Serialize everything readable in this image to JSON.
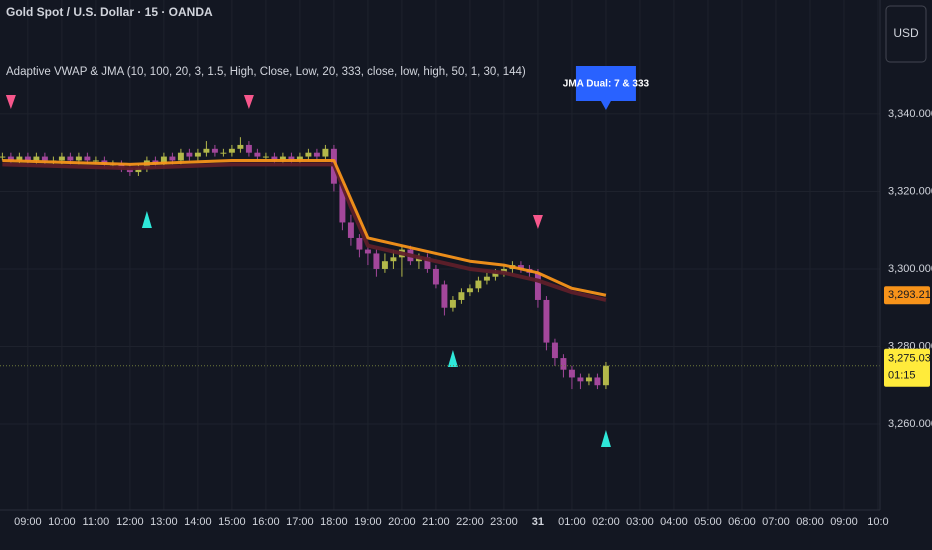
{
  "chart_data": {
    "type": "candlestick",
    "title": "Gold Spot / U.S. Dollar · 15 · OANDA",
    "indicator": "Adaptive VWAP & JMA (10, 100, 20, 3, 1.5, High, Close, Low, 20, 333, close, low, high, 50, 1, 30, 144)",
    "currency": "USD",
    "xlim": [
      -0.82,
      25.06
    ],
    "xticks": [
      {
        "value": 0,
        "label": "09:00"
      },
      {
        "value": 1,
        "label": "10:00"
      },
      {
        "value": 2,
        "label": "11:00"
      },
      {
        "value": 3,
        "label": "12:00"
      },
      {
        "value": 4,
        "label": "13:00"
      },
      {
        "value": 5,
        "label": "14:00"
      },
      {
        "value": 6,
        "label": "15:00"
      },
      {
        "value": 7,
        "label": "16:00"
      },
      {
        "value": 8,
        "label": "17:00"
      },
      {
        "value": 9,
        "label": "18:00"
      },
      {
        "value": 10,
        "label": "19:00"
      },
      {
        "value": 11,
        "label": "20:00"
      },
      {
        "value": 12,
        "label": "21:00"
      },
      {
        "value": 13,
        "label": "22:00"
      },
      {
        "value": 14,
        "label": "23:00"
      },
      {
        "value": 15,
        "label": "31"
      },
      {
        "value": 16,
        "label": "01:00"
      },
      {
        "value": 17,
        "label": "02:00"
      },
      {
        "value": 18,
        "label": "03:00"
      },
      {
        "value": 19,
        "label": "04:00"
      },
      {
        "value": 20,
        "label": "05:00"
      },
      {
        "value": 21,
        "label": "06:00"
      },
      {
        "value": 22,
        "label": "07:00"
      },
      {
        "value": 23,
        "label": "08:00"
      },
      {
        "value": 24,
        "label": "09:00"
      },
      {
        "value": 25,
        "label": "10:0"
      }
    ],
    "ylim": [
      3237.8,
      3369.4
    ],
    "yticks": [
      {
        "value": 3260,
        "label": "3,260.000"
      },
      {
        "value": 3280,
        "label": "3,280.000"
      },
      {
        "value": 3300,
        "label": "3,300.000"
      },
      {
        "value": 3320,
        "label": "3,320.000"
      },
      {
        "value": 3340,
        "label": "3,340.000"
      }
    ],
    "grid": true,
    "up_color": "#b3b84a",
    "down_color": "#a3479b",
    "x": [
      -0.75,
      -0.5,
      -0.25,
      0,
      0.25,
      0.5,
      0.75,
      1,
      1.25,
      1.5,
      1.75,
      2,
      2.25,
      2.5,
      2.75,
      3,
      3.25,
      3.5,
      3.75,
      4,
      4.25,
      4.5,
      4.75,
      5,
      5.25,
      5.5,
      5.75,
      6,
      6.25,
      6.5,
      6.75,
      7,
      7.25,
      7.5,
      7.75,
      8,
      8.25,
      8.5,
      8.75,
      9,
      9.25,
      9.5,
      9.75,
      10,
      10.25,
      10.5,
      10.75,
      11,
      11.25,
      11.5,
      11.75,
      12,
      12.25,
      12.5,
      12.75,
      13,
      13.25,
      13.5,
      13.75,
      14,
      14.25,
      14.5,
      14.75,
      15,
      15.25,
      15.5,
      15.75,
      16,
      16.25,
      16.5,
      16.75,
      17
    ],
    "open": [
      3329,
      3329,
      3328,
      3329,
      3328,
      3329,
      3328,
      3328,
      3329,
      3328,
      3329,
      3328,
      3328,
      3327,
      3327,
      3326,
      3325,
      3326,
      3328,
      3327,
      3329,
      3328,
      3330,
      3329,
      3330,
      3331,
      3330,
      3330,
      3331,
      3332,
      3330,
      3329,
      3329,
      3328,
      3329,
      3328,
      3329,
      3330,
      3329,
      3331,
      3322,
      3312,
      3308,
      3305,
      3304,
      3300,
      3302,
      3303,
      3305,
      3302,
      3303,
      3300,
      3296,
      3290,
      3292,
      3294,
      3295,
      3297,
      3298,
      3299,
      3300,
      3301,
      3300,
      3299,
      3292,
      3281,
      3277,
      3274,
      3272,
      3271,
      3272,
      3270
    ],
    "high": [
      3330,
      3330,
      3330,
      3330,
      3330,
      3330,
      3329,
      3330,
      3330,
      3330,
      3330,
      3329,
      3329,
      3328,
      3328,
      3327,
      3327,
      3329,
      3329,
      3330,
      3330,
      3331,
      3331,
      3331,
      3333,
      3332,
      3331,
      3332,
      3334,
      3333,
      3331,
      3330,
      3330,
      3330,
      3330,
      3330,
      3331,
      3331,
      3332,
      3332,
      3323,
      3314,
      3309,
      3306,
      3305,
      3304,
      3305,
      3306,
      3306,
      3304,
      3304,
      3301,
      3297,
      3293,
      3295,
      3296,
      3298,
      3299,
      3300,
      3301,
      3302,
      3302,
      3301,
      3300,
      3293,
      3282,
      3278,
      3275,
      3273,
      3273,
      3273,
      3276
    ],
    "low": [
      3328,
      3327,
      3327,
      3327,
      3327,
      3327,
      3327,
      3327,
      3327,
      3327,
      3327,
      3327,
      3326,
      3326,
      3325,
      3324,
      3324,
      3325,
      3326,
      3326,
      3327,
      3327,
      3328,
      3328,
      3329,
      3329,
      3329,
      3329,
      3330,
      3329,
      3328,
      3328,
      3327,
      3327,
      3327,
      3327,
      3328,
      3328,
      3328,
      3320,
      3310,
      3306,
      3303,
      3301,
      3298,
      3299,
      3300,
      3298,
      3301,
      3300,
      3299,
      3295,
      3288,
      3289,
      3291,
      3293,
      3294,
      3296,
      3297,
      3298,
      3299,
      3299,
      3298,
      3290,
      3279,
      3275,
      3272,
      3269,
      3269,
      3270,
      3269,
      3269
    ],
    "close": [
      3329,
      3328,
      3329,
      3328,
      3329,
      3328,
      3328,
      3329,
      3328,
      3329,
      3328,
      3328,
      3327,
      3327,
      3326,
      3325,
      3326,
      3328,
      3327,
      3329,
      3328,
      3330,
      3329,
      3330,
      3331,
      3330,
      3330,
      3331,
      3332,
      3330,
      3329,
      3329,
      3328,
      3329,
      3328,
      3329,
      3330,
      3329,
      3331,
      3322,
      3312,
      3308,
      3305,
      3304,
      3300,
      3302,
      3303,
      3305,
      3302,
      3303,
      3300,
      3296,
      3290,
      3292,
      3294,
      3295,
      3297,
      3298,
      3299,
      3300,
      3301,
      3300,
      3299,
      3292,
      3281,
      3277,
      3274,
      3272,
      3271,
      3272,
      3270,
      3275.035
    ],
    "lines": [
      {
        "color": "#5e1f2a",
        "x": [
          -0.75,
          3,
          6,
          9,
          9.5,
          10,
          11,
          12,
          13,
          14,
          15,
          16,
          17
        ],
        "values": [
          3327,
          3326,
          3327,
          3327,
          3316,
          3306,
          3304,
          3302,
          3300,
          3299,
          3297,
          3294,
          3292
        ]
      },
      {
        "color": "#f7931a",
        "x": [
          -0.75,
          3,
          6,
          9,
          9.5,
          10,
          11,
          12,
          13,
          14,
          15,
          16,
          17
        ],
        "values": [
          3328,
          3327,
          3328,
          3328,
          3318,
          3308,
          3306,
          3304,
          3302,
          3301,
          3299,
          3295,
          3293.217
        ]
      }
    ],
    "sell_signals_x": [
      -0.5,
      6.5,
      15
    ],
    "buy_signals_x": [
      3.5,
      12.5,
      17
    ],
    "annotation": {
      "text": "JMA Dual: 7 & 333",
      "x": 17
    },
    "jma_price": {
      "value": 3293.217,
      "label": "3,293.217",
      "color": "#f7931a"
    },
    "last_price": {
      "value": 3275.035,
      "label": "3,275.035",
      "countdown": "01:15",
      "color": "#ffeb3b"
    }
  }
}
